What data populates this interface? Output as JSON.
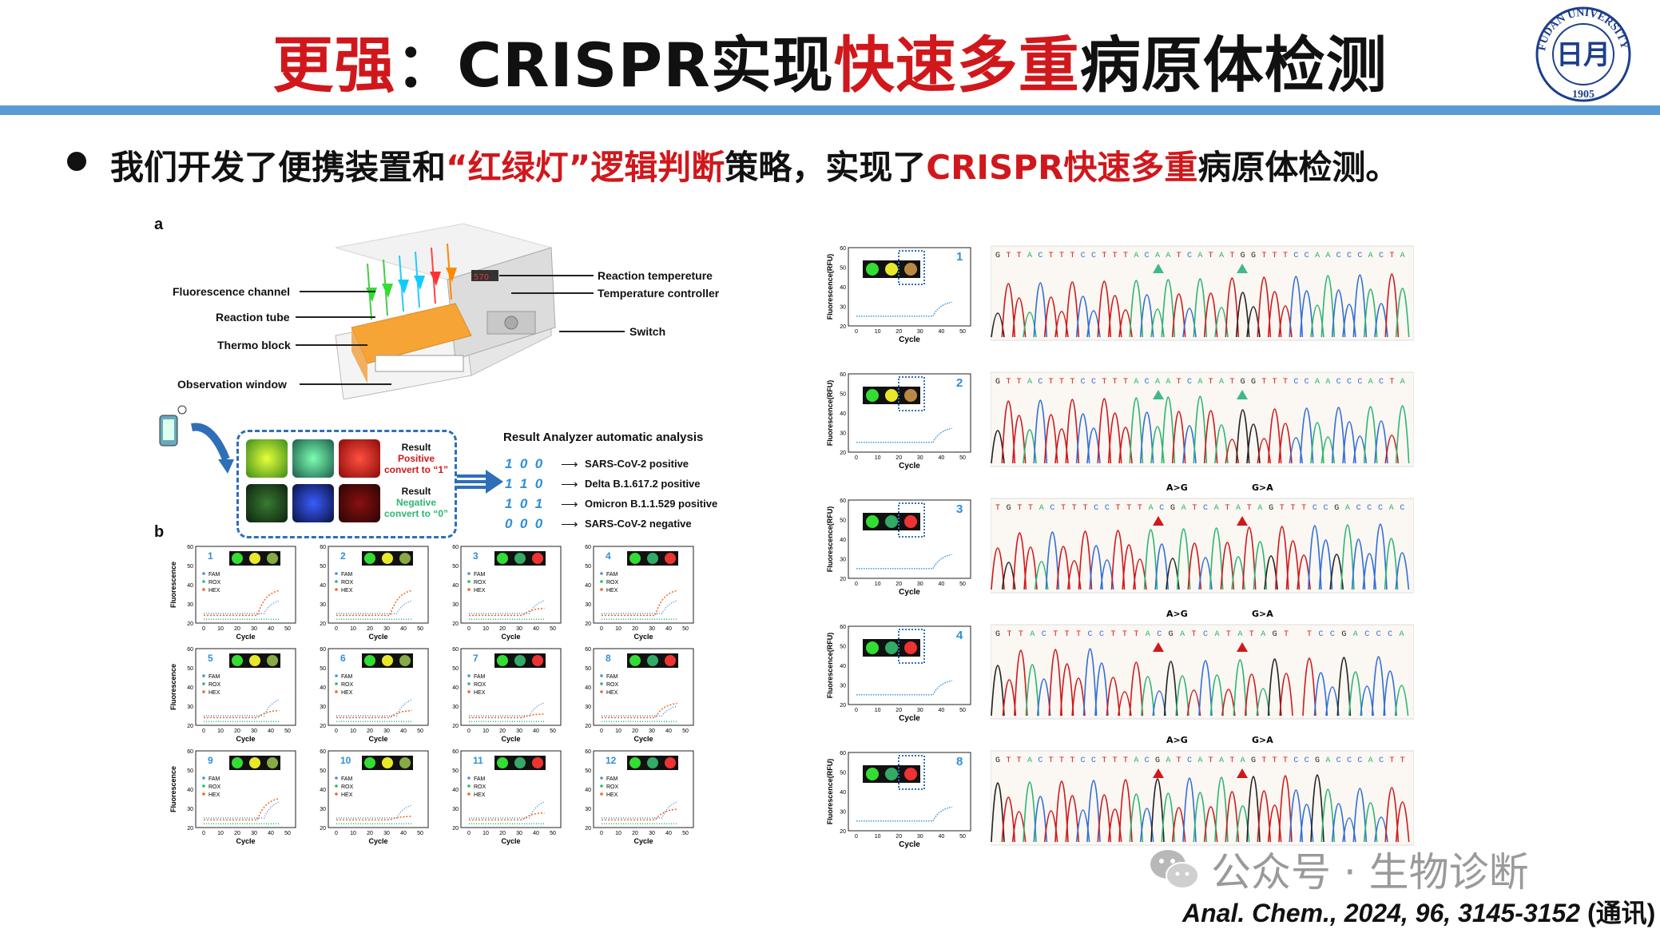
{
  "title": {
    "part1": "更强",
    "part2": "：CRISPR实现",
    "part3": "快速多重",
    "part4": "病原体检测"
  },
  "logo": {
    "text_top": "FUDAN UNIVERSITY",
    "year": "1905",
    "center": "日月"
  },
  "bullet": {
    "p1": "我们开发了便携装置和",
    "p2": "“红绿灯”逻辑判断",
    "p3": "策略，实现了",
    "p4": "CRISPR快速多重",
    "p5": "病原体检测。"
  },
  "panel_a": {
    "letter": "a",
    "labels": {
      "fluor": "Fluorescence channel",
      "tube": "Reaction tube",
      "thermo": "Thermo block",
      "obs": "Observation window",
      "react_temp": "Reaction tempereture",
      "temp_ctrl": "Temperature controller",
      "switch": "Switch",
      "display": "570"
    },
    "result_box": {
      "pos_title": "Result",
      "pos_word": "Positive",
      "pos_conv": "convert to “1”",
      "neg_title": "Result",
      "neg_word": "Negative",
      "neg_conv": "convert to “0”"
    },
    "analyzer": {
      "title": "Result Analyzer automatic analysis",
      "rows": [
        {
          "code": "1  0  0",
          "label": "SARS-CoV-2 positive"
        },
        {
          "code": "1  1  0",
          "label": "Delta B.1.617.2 positive"
        },
        {
          "code": "1  0  1",
          "label": "Omicron B.1.1.529 positive"
        },
        {
          "code": "0  0  0",
          "label": "SARS-CoV-2 negative"
        }
      ]
    }
  },
  "panel_b": {
    "letter": "b",
    "ylabel": "Fluorescence",
    "xlabel": "Cycle",
    "legend": [
      "FAM",
      "ROX",
      "HEX"
    ],
    "yticks": [
      "20",
      "30",
      "40",
      "50",
      "60"
    ],
    "xticks": [
      "0",
      "10",
      "20",
      "30",
      "40",
      "50"
    ],
    "panels": [
      "1",
      "2",
      "3",
      "4",
      "5",
      "6",
      "7",
      "8",
      "9",
      "10",
      "11",
      "12"
    ]
  },
  "right": {
    "ylabel": "Fluorescence(RFU)",
    "xlabel": "Cycle",
    "yticks": [
      "20",
      "30",
      "40",
      "50",
      "60"
    ],
    "xticks": [
      "0",
      "10",
      "20",
      "30",
      "40",
      "50"
    ],
    "rows": [
      {
        "num": "1",
        "seq": "GTTACTTTCCTTTACAATCATATGGTTTCCAACCCACTA",
        "mut1": "",
        "mut2": "",
        "marker": "#3fb98a"
      },
      {
        "num": "2",
        "seq": "GTTACTTTCCTTTACAATCATATGGTTTCCAACCCACTA",
        "mut1": "",
        "mut2": "",
        "marker": "#3fb98a"
      },
      {
        "num": "3",
        "seq": "TGTTACTTTCCTTTACGATCATATAGTTTCCGACCCAC",
        "mut1": "A>G",
        "mut2": "G>A",
        "marker": "#d0181c"
      },
      {
        "num": "4",
        "seq": "GTTACTTTCCTTTACGATCATATAGT TCCGACCCA",
        "mut1": "A>G",
        "mut2": "G>A",
        "marker": "#d0181c"
      },
      {
        "num": "8",
        "seq": "GTTACTTTCCTTTACGATCATATAGTTTCCGACCCACTT",
        "mut1": "A>G",
        "mut2": "G>A",
        "marker": "#d0181c"
      }
    ]
  },
  "watermark": "公众号 · 生物诊断",
  "citation": {
    "text": "Anal. Chem., 2024, 96, 3145-3152 ",
    "note": "(通讯)"
  },
  "colors": {
    "accent_red": "#d0181c",
    "bar_blue": "#5b9bd5",
    "fam": "#4a90d9",
    "rox": "#2bb673",
    "hex": "#f26522"
  }
}
